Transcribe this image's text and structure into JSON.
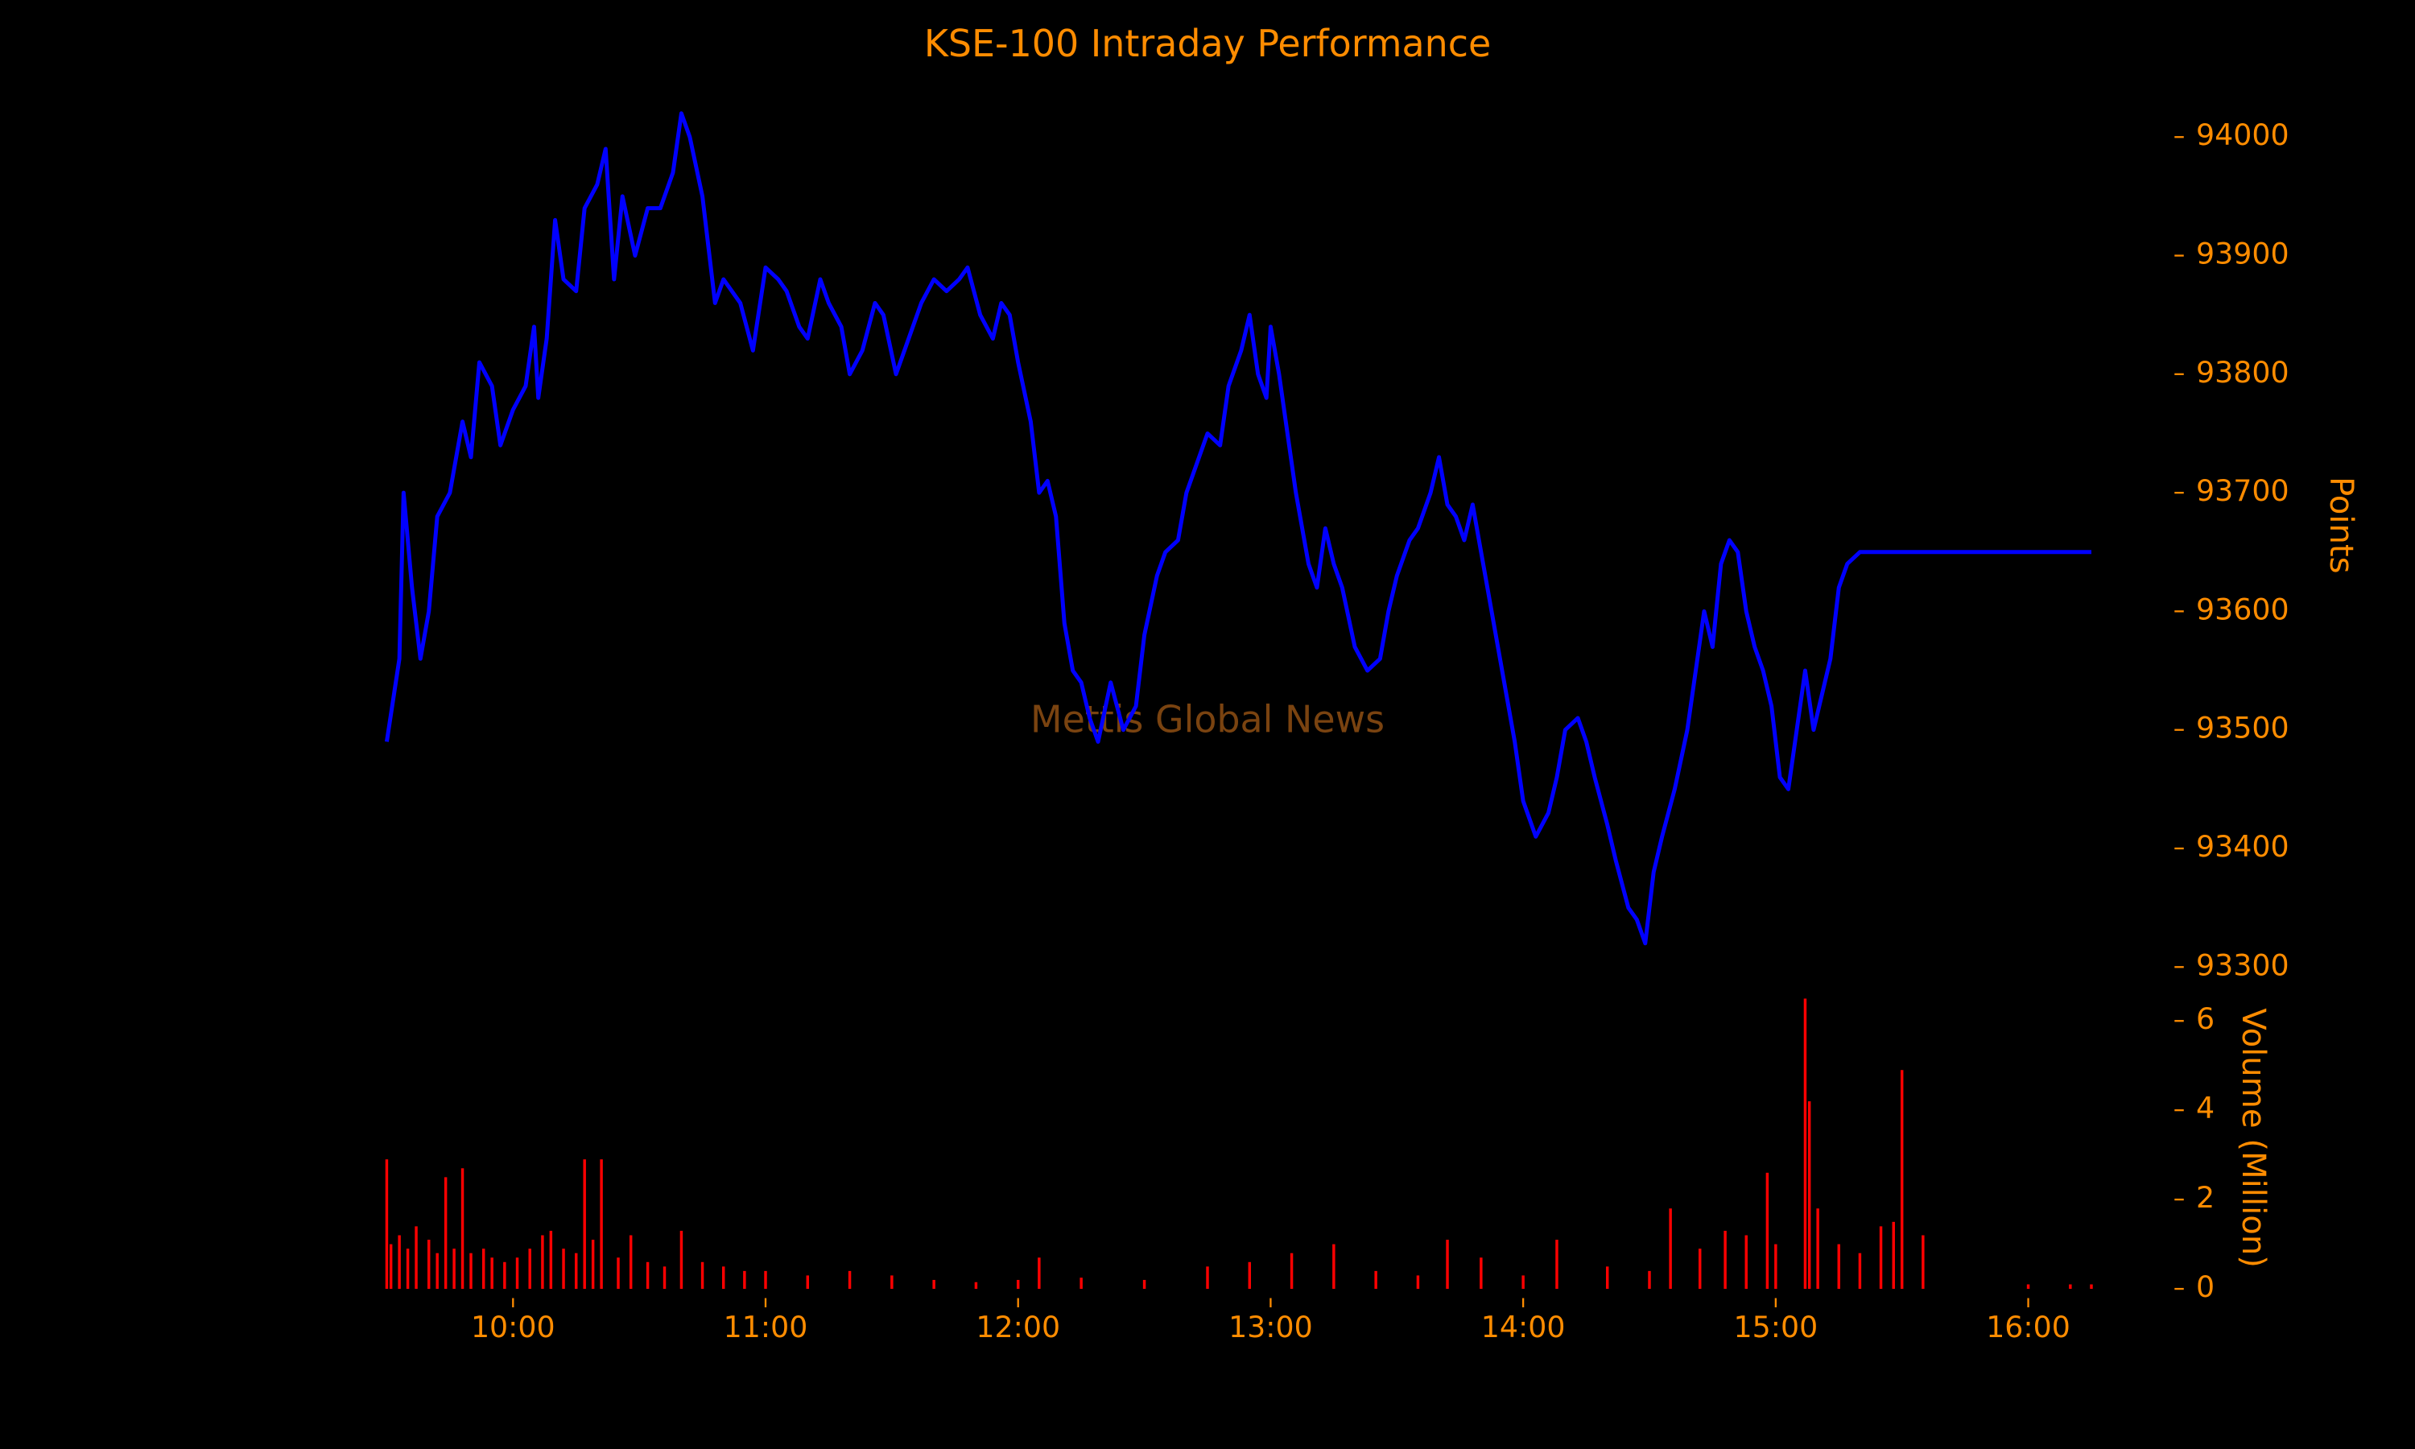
{
  "chart_data": [
    {
      "type": "line",
      "title": "KSE-100 Intraday Performance",
      "watermark": "Mettis Global News",
      "ylabel": "Points",
      "color": "#0000ff",
      "xlim": [
        "09:30",
        "16:15"
      ],
      "x": [
        "09:30",
        "09:33",
        "09:34",
        "09:36",
        "09:38",
        "09:40",
        "09:42",
        "09:45",
        "09:48",
        "09:50",
        "09:52",
        "09:55",
        "09:57",
        "10:00",
        "10:03",
        "10:05",
        "10:06",
        "10:08",
        "10:10",
        "10:12",
        "10:15",
        "10:17",
        "10:20",
        "10:22",
        "10:24",
        "10:26",
        "10:29",
        "10:32",
        "10:35",
        "10:38",
        "10:40",
        "10:42",
        "10:45",
        "10:48",
        "10:50",
        "10:54",
        "10:57",
        "11:00",
        "11:03",
        "11:05",
        "11:08",
        "11:10",
        "11:13",
        "11:15",
        "11:18",
        "11:20",
        "11:23",
        "11:26",
        "11:28",
        "11:31",
        "11:34",
        "11:37",
        "11:40",
        "11:43",
        "11:46",
        "11:48",
        "11:51",
        "11:54",
        "11:56",
        "11:58",
        "12:00",
        "12:03",
        "12:05",
        "12:07",
        "12:09",
        "12:11",
        "12:13",
        "12:15",
        "12:17",
        "12:19",
        "12:22",
        "12:25",
        "12:28",
        "12:30",
        "12:33",
        "12:35",
        "12:38",
        "12:40",
        "12:42",
        "12:45",
        "12:48",
        "12:50",
        "12:53",
        "12:55",
        "12:57",
        "12:59",
        "13:00",
        "13:02",
        "13:04",
        "13:06",
        "13:09",
        "13:11",
        "13:13",
        "13:15",
        "13:17",
        "13:20",
        "13:23",
        "13:26",
        "13:28",
        "13:30",
        "13:33",
        "13:35",
        "13:38",
        "13:40",
        "13:42",
        "13:44",
        "13:46",
        "13:48",
        "13:50",
        "13:53",
        "13:56",
        "13:58",
        "14:00",
        "14:03",
        "14:06",
        "14:08",
        "14:10",
        "14:13",
        "14:15",
        "14:17",
        "14:20",
        "14:22",
        "14:25",
        "14:27",
        "14:29",
        "14:31",
        "14:33",
        "14:36",
        "14:39",
        "14:41",
        "14:43",
        "14:45",
        "14:47",
        "14:49",
        "14:51",
        "14:53",
        "14:55",
        "14:57",
        "14:59",
        "15:01",
        "15:03",
        "15:05",
        "15:07",
        "15:09",
        "15:11",
        "15:13",
        "15:15",
        "15:17",
        "15:20",
        "15:30",
        "16:15"
      ],
      "values": [
        93490,
        93560,
        93700,
        93620,
        93560,
        93600,
        93680,
        93700,
        93760,
        93730,
        93810,
        93790,
        93740,
        93770,
        93790,
        93840,
        93780,
        93830,
        93930,
        93880,
        93870,
        93940,
        93960,
        93990,
        93880,
        93950,
        93900,
        93940,
        93940,
        93970,
        94020,
        94000,
        93950,
        93860,
        93880,
        93860,
        93820,
        93890,
        93880,
        93870,
        93840,
        93830,
        93880,
        93860,
        93840,
        93800,
        93820,
        93860,
        93850,
        93800,
        93830,
        93860,
        93880,
        93870,
        93880,
        93890,
        93850,
        93830,
        93860,
        93850,
        93810,
        93760,
        93700,
        93710,
        93680,
        93590,
        93550,
        93540,
        93510,
        93490,
        93540,
        93500,
        93520,
        93580,
        93630,
        93650,
        93660,
        93700,
        93720,
        93750,
        93740,
        93790,
        93820,
        93850,
        93800,
        93780,
        93840,
        93800,
        93750,
        93700,
        93640,
        93620,
        93670,
        93640,
        93620,
        93570,
        93550,
        93560,
        93600,
        93630,
        93660,
        93670,
        93700,
        93730,
        93690,
        93680,
        93660,
        93690,
        93650,
        93590,
        93530,
        93490,
        93440,
        93410,
        93430,
        93460,
        93500,
        93510,
        93490,
        93460,
        93420,
        93390,
        93350,
        93340,
        93320,
        93380,
        93410,
        93450,
        93500,
        93550,
        93600,
        93570,
        93640,
        93660,
        93650,
        93600,
        93570,
        93550,
        93520,
        93460,
        93450,
        93500,
        93550,
        93500,
        93530,
        93560,
        93620,
        93640,
        93650,
        93650,
        93650
      ],
      "ylim": [
        93300,
        94000
      ],
      "yticks": [
        93300,
        93400,
        93500,
        93600,
        93700,
        93800,
        93900,
        94000
      ]
    },
    {
      "type": "bar",
      "ylabel": "Volume (Million)",
      "color": "#ff0000",
      "xlim": [
        "09:30",
        "16:15"
      ],
      "xticks": [
        "10:00",
        "11:00",
        "12:00",
        "13:00",
        "14:00",
        "15:00",
        "16:00"
      ],
      "x": [
        "09:30",
        "09:31",
        "09:33",
        "09:35",
        "09:37",
        "09:40",
        "09:42",
        "09:44",
        "09:46",
        "09:48",
        "09:50",
        "09:53",
        "09:55",
        "09:58",
        "10:01",
        "10:04",
        "10:07",
        "10:09",
        "10:12",
        "10:15",
        "10:17",
        "10:19",
        "10:21",
        "10:25",
        "10:28",
        "10:32",
        "10:36",
        "10:40",
        "10:45",
        "10:50",
        "10:55",
        "11:00",
        "11:10",
        "11:20",
        "11:30",
        "11:40",
        "11:50",
        "12:00",
        "12:05",
        "12:15",
        "12:30",
        "12:45",
        "12:55",
        "13:05",
        "13:15",
        "13:25",
        "13:35",
        "13:42",
        "13:50",
        "14:00",
        "14:08",
        "14:20",
        "14:30",
        "14:35",
        "14:42",
        "14:48",
        "14:53",
        "14:58",
        "15:00",
        "15:07",
        "15:08",
        "15:10",
        "15:15",
        "15:20",
        "15:25",
        "15:28",
        "15:30",
        "15:35",
        "16:00",
        "16:10",
        "16:15"
      ],
      "values": [
        2.9,
        1.0,
        1.2,
        0.9,
        1.4,
        1.1,
        0.8,
        2.5,
        0.9,
        2.7,
        0.8,
        0.9,
        0.7,
        0.6,
        0.7,
        0.9,
        1.2,
        1.3,
        0.9,
        0.8,
        2.9,
        1.1,
        2.9,
        0.7,
        1.2,
        0.6,
        0.5,
        1.3,
        0.6,
        0.5,
        0.4,
        0.4,
        0.3,
        0.4,
        0.3,
        0.2,
        0.15,
        0.2,
        0.7,
        0.25,
        0.2,
        0.5,
        0.6,
        0.8,
        1.0,
        0.4,
        0.3,
        1.1,
        0.7,
        0.3,
        1.1,
        0.5,
        0.4,
        1.8,
        0.9,
        1.3,
        1.2,
        2.6,
        1.0,
        6.5,
        4.2,
        1.8,
        1.0,
        0.8,
        1.4,
        1.5,
        4.9,
        1.2,
        0.1,
        0.1,
        0.1
      ],
      "ylim": [
        0,
        6
      ],
      "yticks": [
        0,
        2,
        4,
        6
      ]
    }
  ]
}
